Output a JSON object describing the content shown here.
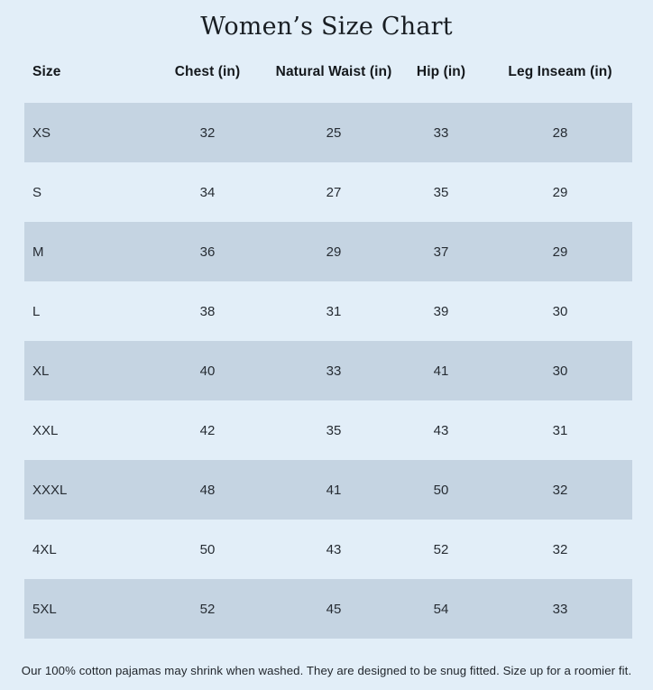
{
  "title": "Women’s Size Chart",
  "colors": {
    "page_background": "#e2eef8",
    "row_band": "#c5d4e2",
    "text": "#22282e"
  },
  "footnote": "Our 100% cotton pajamas may shrink when washed. They are designed to be snug fitted. Size up for a roomier fit.",
  "chart_data": {
    "type": "table",
    "title": "Women’s Size Chart",
    "columns": [
      "Size",
      "Chest (in)",
      "Natural Waist (in)",
      "Hip (in)",
      "Leg Inseam (in)"
    ],
    "rows": [
      [
        "XS",
        "32",
        "25",
        "33",
        "28"
      ],
      [
        "S",
        "34",
        "27",
        "35",
        "29"
      ],
      [
        "M",
        "36",
        "29",
        "37",
        "29"
      ],
      [
        "L",
        "38",
        "31",
        "39",
        "30"
      ],
      [
        "XL",
        "40",
        "33",
        "41",
        "30"
      ],
      [
        "XXL",
        "42",
        "35",
        "43",
        "31"
      ],
      [
        "XXXL",
        "48",
        "41",
        "50",
        "32"
      ],
      [
        "4XL",
        "50",
        "43",
        "52",
        "32"
      ],
      [
        "5XL",
        "52",
        "45",
        "54",
        "33"
      ]
    ],
    "layout": {
      "striped_rows": "odd rows shaded",
      "footnote": "Our 100% cotton pajamas may shrink when washed. They are designed to be snug fitted. Size up for a roomier fit."
    }
  }
}
